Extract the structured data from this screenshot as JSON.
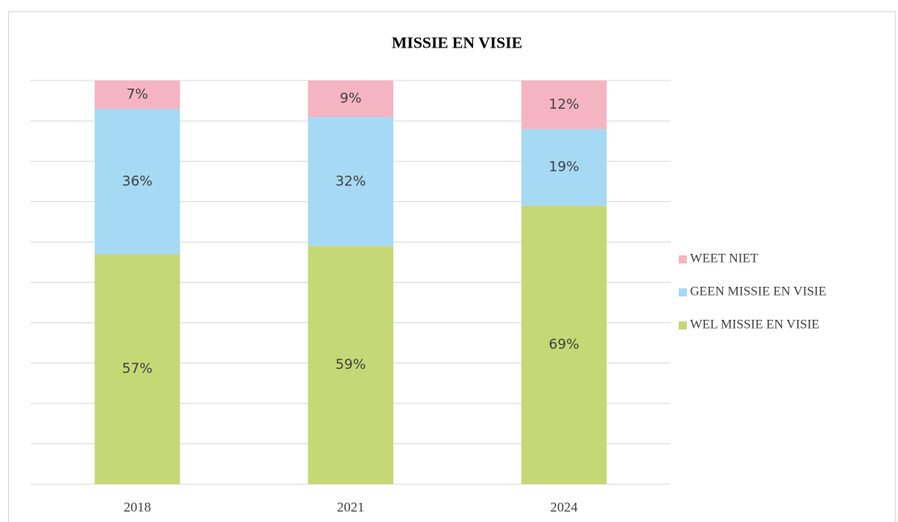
{
  "chart_data": {
    "type": "stacked_bar",
    "title": "MISSIE EN VISIE",
    "categories": [
      "2018",
      "2021",
      "2024"
    ],
    "series": [
      {
        "name": "WEL MISSIE EN VISIE",
        "color": "#c6d775",
        "values": [
          57,
          59,
          69
        ],
        "value_labels": [
          "57%",
          "59%",
          "69%"
        ]
      },
      {
        "name": "GEEN MISSIE EN VISIE",
        "color": "#a6d9f3",
        "values": [
          36,
          32,
          19
        ],
        "value_labels": [
          "36%",
          "32%",
          "19%"
        ]
      },
      {
        "name": "WEET NIET",
        "color": "#f5b4c2",
        "values": [
          7,
          9,
          12
        ],
        "value_labels": [
          "7%",
          "9%",
          "12%"
        ]
      }
    ],
    "ylim": [
      0,
      100
    ],
    "yticks": [
      0,
      10,
      20,
      30,
      40,
      50,
      60,
      70,
      80,
      90,
      100
    ],
    "ytick_labels": false,
    "grid": true,
    "legend": "right"
  }
}
